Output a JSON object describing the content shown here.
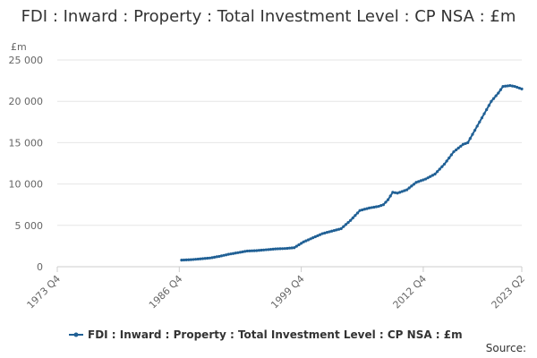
{
  "chart_data": {
    "type": "line",
    "title": "FDI : Inward : Property : Total Investment Level : CP NSA : £m",
    "ylabel": "£m",
    "xlabel": "",
    "source_label": "Source:",
    "ylim": [
      0,
      25000
    ],
    "yticks": [
      0,
      5000,
      10000,
      15000,
      20000,
      25000
    ],
    "ytick_labels": [
      "0",
      "5 000",
      "10 000",
      "15 000",
      "20 000",
      "25 000"
    ],
    "xlim": [
      "1973 Q4",
      "2023 Q2"
    ],
    "xticks": [
      "1973 Q4",
      "1986 Q4",
      "1999 Q4",
      "2012 Q4",
      "2023 Q2"
    ],
    "grid": "horizontal",
    "legend_position": "bottom",
    "colors": {
      "series": "#206095",
      "grid": "#e6e6e6",
      "axis": "#cccccc",
      "text": "#666666"
    },
    "series": [
      {
        "name": "FDI : Inward : Property : Total Investment Level : CP NSA : £m",
        "x": [
          "1987 Q1",
          "1988 Q1",
          "1989 Q1",
          "1990 Q1",
          "1991 Q1",
          "1992 Q1",
          "1993 Q1",
          "1994 Q1",
          "1995 Q1",
          "1996 Q1",
          "1997 Q1",
          "1998 Q1",
          "1999 Q1",
          "2000 Q1",
          "2001 Q1",
          "2002 Q1",
          "2003 Q1",
          "2004 Q1",
          "2005 Q1",
          "2006 Q1",
          "2007 Q1",
          "2008 Q1",
          "2008 Q3",
          "2009 Q1",
          "2009 Q3",
          "2010 Q1",
          "2011 Q1",
          "2012 Q1",
          "2013 Q1",
          "2014 Q1",
          "2015 Q1",
          "2016 Q1",
          "2017 Q1",
          "2017 Q3",
          "2018 Q1",
          "2019 Q1",
          "2020 Q1",
          "2020 Q4",
          "2021 Q2",
          "2022 Q1",
          "2022 Q3",
          "2023 Q2"
        ],
        "y": [
          800,
          850,
          950,
          1050,
          1250,
          1500,
          1700,
          1900,
          1950,
          2050,
          2150,
          2200,
          2300,
          3000,
          3500,
          4000,
          4300,
          4600,
          5600,
          6800,
          7100,
          7300,
          7500,
          8100,
          9000,
          8900,
          9300,
          10200,
          10600,
          11200,
          12400,
          13900,
          14800,
          15000,
          16000,
          18000,
          20000,
          21000,
          21800,
          21900,
          21800,
          21500
        ]
      }
    ]
  }
}
